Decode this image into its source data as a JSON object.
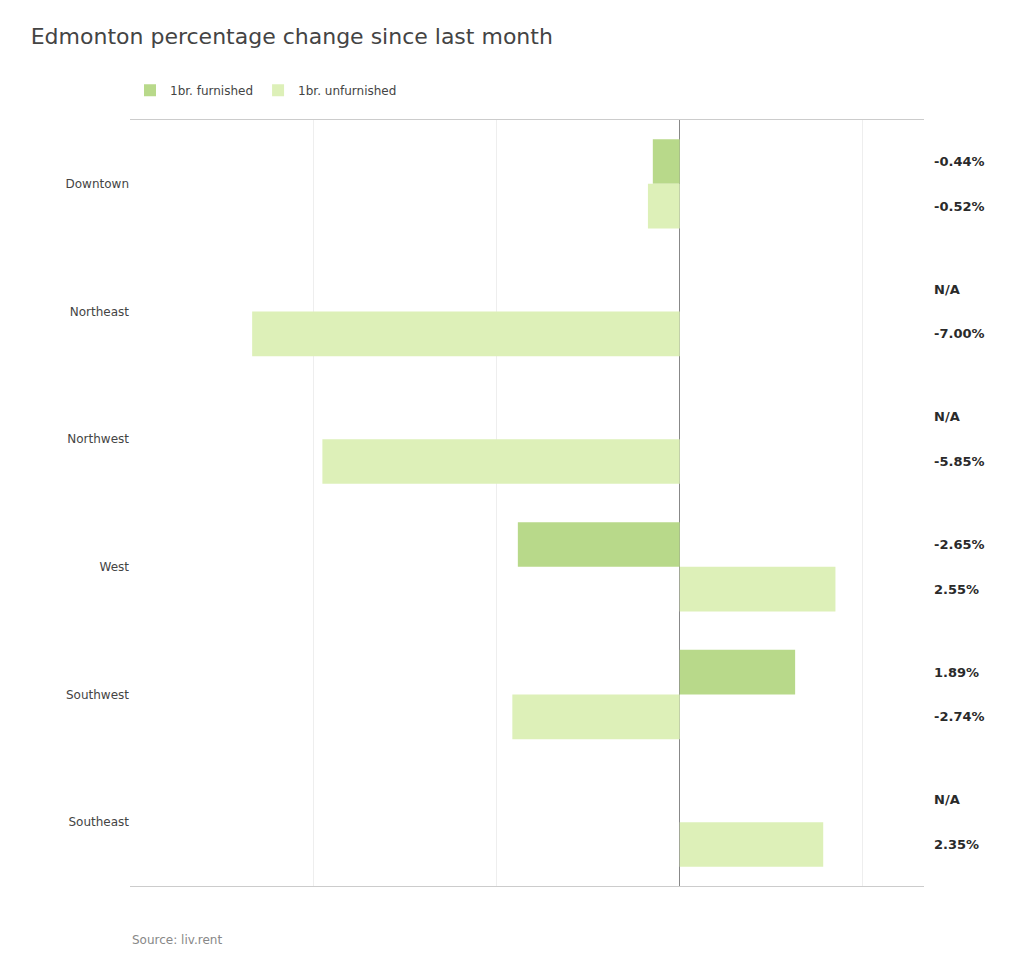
{
  "chart_data": {
    "type": "bar",
    "orientation": "horizontal",
    "title": "Edmonton percentage change since last month",
    "categories": [
      "Downtown",
      "Northeast",
      "Northwest",
      "West",
      "Southwest",
      "Southeast"
    ],
    "series": [
      {
        "name": "1br. furnished",
        "color": "#b8d98a",
        "values": [
          -0.44,
          null,
          null,
          -2.65,
          1.89,
          null
        ],
        "value_labels": [
          "-0.44%",
          "N/A",
          "N/A",
          "-2.65%",
          "1.89%",
          "N/A"
        ]
      },
      {
        "name": "1br. unfurnished",
        "color": "#ddf0b8",
        "values": [
          -0.52,
          -7.0,
          -5.85,
          2.55,
          -2.74,
          2.35
        ],
        "value_labels": [
          "-0.52%",
          "-7.00%",
          "-5.85%",
          "2.55%",
          "-2.74%",
          "2.35%"
        ]
      }
    ],
    "xlim": [
      -9,
      4
    ],
    "xticks": [
      -6,
      -3,
      0,
      3
    ],
    "grid": true,
    "tick_labels": "y",
    "data_labels": true,
    "legend": "top",
    "annotations": [
      "Source: liv.rent"
    ]
  }
}
